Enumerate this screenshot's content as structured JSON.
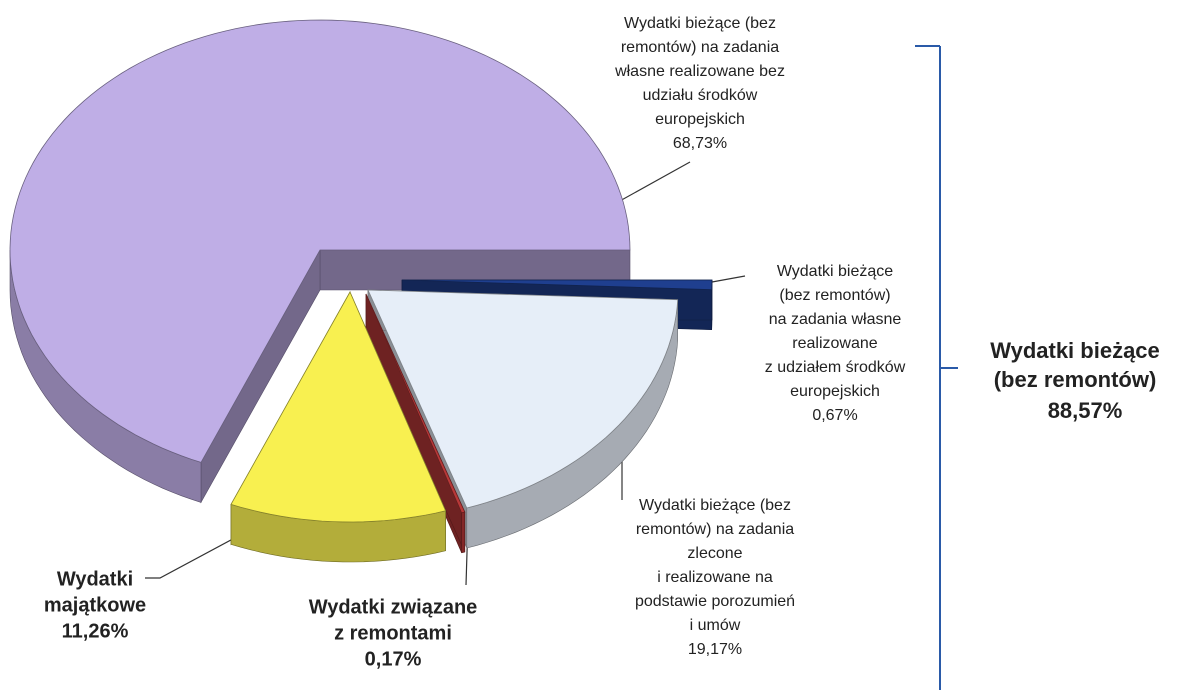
{
  "chart_data": {
    "type": "pie",
    "categories": [
      [
        "Wydatki bieżące (bez",
        "remontów) na zadania",
        "własne  realizowane bez",
        "udziału środków",
        "europejskich"
      ],
      [
        "Wydatki",
        "majątkowe"
      ],
      [
        "Wydatki związane",
        "z remontami"
      ],
      [
        "Wydatki bieżące (bez",
        "remontów) na zadania",
        "zlecone",
        "i realizowane na",
        "podstawie  porozumień",
        "i umów"
      ],
      [
        "Wydatki bieżące",
        "(bez remontów)",
        "na zadania własne",
        "realizowane",
        "z udziałem  środków",
        "europejskich"
      ]
    ],
    "values": [
      68.73,
      11.26,
      0.17,
      19.17,
      0.67
    ],
    "value_labels": [
      "68,73%",
      "11,26%",
      "0,17%",
      "19,17%",
      "0,67%"
    ],
    "colors": [
      "#bfaee6",
      "#f8f050",
      "#b83838",
      "#e6eef8",
      "#1f3f8f"
    ],
    "annotation": [
      "Wydatki bieżące",
      "(bez remontów)",
      "88,57%"
    ]
  }
}
